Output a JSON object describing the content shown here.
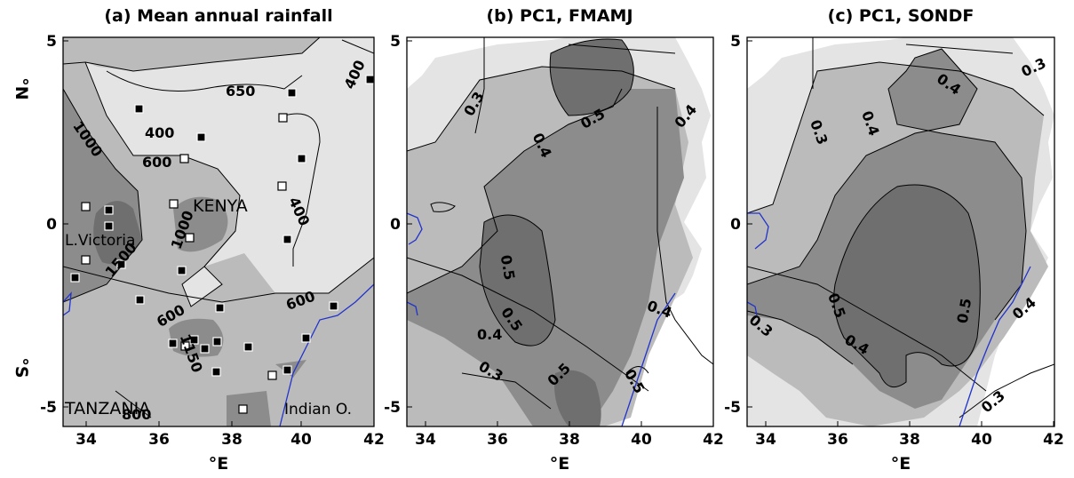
{
  "panels": [
    {
      "title": "(a) Mean annual rainfall",
      "contour_labels": [
        "650",
        "400",
        "400",
        "1000",
        "600",
        "400",
        "1000",
        "1500",
        "600",
        "600",
        "1150",
        "800"
      ],
      "places": {
        "kenya": "KENYA",
        "victoria": "L.Victoria",
        "tanzania": "TANZANIA",
        "indian": "Indian O."
      }
    },
    {
      "title": "(b) PC1, FMAMJ",
      "contour_labels": [
        "0.3",
        "0.4",
        "0.5",
        "0.4",
        "0.5",
        "0.5",
        "0.4",
        "0.4",
        "0.3",
        "0.5",
        "0.5"
      ]
    },
    {
      "title": "(c) PC1, SONDF",
      "contour_labels": [
        "0.3",
        "0.4",
        "0.3",
        "0.4",
        "0.5",
        "0.5",
        "0.4",
        "0.3",
        "0.4",
        "0.3"
      ]
    }
  ],
  "axes": {
    "x_ticks": [
      "34",
      "36",
      "38",
      "40",
      "42"
    ],
    "y_ticks": [
      "5",
      "0",
      "-5"
    ],
    "x_label": "°E",
    "y_label_n": "°N",
    "y_label_s": "°S",
    "lon_range": [
      33.5,
      42
    ],
    "lat_range": [
      -5.5,
      5
    ]
  },
  "colors": {
    "shade_light": "#e4e4e4",
    "shade_mid": "#bbbbbb",
    "shade_dark": "#8c8c8c",
    "coast": "#2233cc"
  }
}
